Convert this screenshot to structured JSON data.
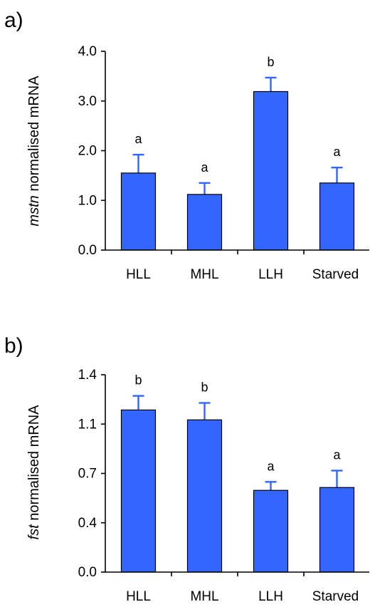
{
  "chart_data": [
    {
      "type": "bar",
      "panel_label": "a)",
      "ylabel_italic": "mstn",
      "ylabel_rest": " normalised mRNA",
      "categories": [
        "HLL",
        "MHL",
        "LLH",
        "Starved"
      ],
      "values": [
        1.55,
        1.12,
        3.19,
        1.35
      ],
      "errors": [
        0.37,
        0.23,
        0.28,
        0.31
      ],
      "significance": [
        "a",
        "a",
        "b",
        "a"
      ],
      "ylim": [
        0,
        4
      ],
      "yticks": [
        0,
        1,
        2,
        3,
        4
      ],
      "ytick_labels": [
        "0.0",
        "1.0",
        "2.0",
        "3.0",
        "4.0"
      ],
      "bar_color": "#3366ff"
    },
    {
      "type": "bar",
      "panel_label": "b)",
      "ylabel_italic": "fst",
      "ylabel_rest": " normalised mRNA",
      "categories": [
        "HLL",
        "MHL",
        "LLH",
        "Starved"
      ],
      "values": [
        1.15,
        1.08,
        0.58,
        0.6
      ],
      "errors": [
        0.1,
        0.12,
        0.06,
        0.12
      ],
      "significance": [
        "b",
        "b",
        "a",
        "a"
      ],
      "ylim": [
        0,
        1.4
      ],
      "yticks": [
        0,
        0.35,
        0.7,
        1.05,
        1.4
      ],
      "ytick_labels": [
        "0.0",
        "0.4",
        "0.7",
        "1.1",
        "1.4"
      ],
      "bar_color": "#3366ff"
    }
  ]
}
